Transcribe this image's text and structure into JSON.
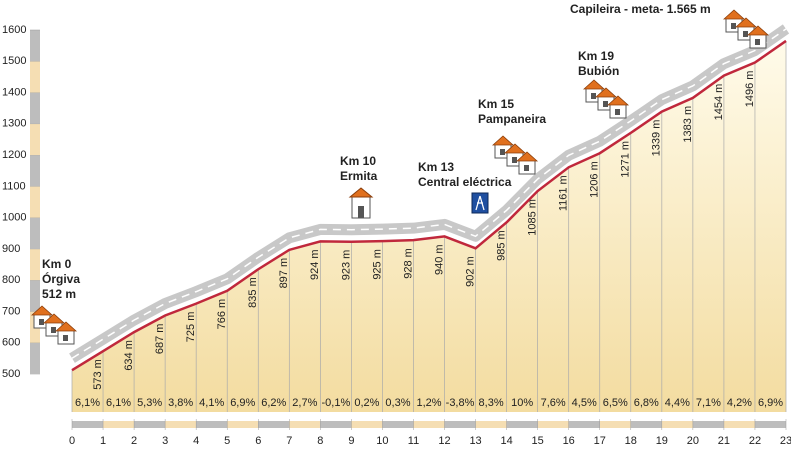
{
  "chart_data": {
    "type": "elevation-profile",
    "x": [
      0,
      1,
      2,
      3,
      4,
      5,
      6,
      7,
      8,
      9,
      10,
      11,
      12,
      13,
      14,
      15,
      16,
      17,
      18,
      19,
      20,
      21,
      22,
      23
    ],
    "xlim": [
      0,
      23
    ],
    "xticks": [
      0,
      1,
      2,
      3,
      4,
      5,
      6,
      7,
      8,
      9,
      10,
      11,
      12,
      13,
      14,
      15,
      16,
      17,
      18,
      19,
      20,
      21,
      22,
      23
    ],
    "ylim": [
      500,
      1600
    ],
    "yticks": [
      500,
      600,
      700,
      800,
      900,
      1000,
      1100,
      1200,
      1300,
      1400,
      1500,
      1600
    ],
    "series": [
      {
        "color": "#c0283c",
        "values": [
          512,
          573,
          634,
          687,
          725,
          766,
          835,
          897,
          924,
          923,
          925,
          928,
          940,
          902,
          985,
          1085,
          1161,
          1206,
          1271,
          1339,
          1383,
          1454,
          1496,
          1565
        ],
        "value_labels": [
          "512 m",
          "573 m",
          "634 m",
          "687 m",
          "725 m",
          "766 m",
          "835 m",
          "897 m",
          "924 m",
          "923 m",
          "925 m",
          "928 m",
          "940 m",
          "902 m",
          "985 m",
          "1085 m",
          "1161 m",
          "1206 m",
          "1271 m",
          "1339 m",
          "1383 m",
          "1454 m",
          "1496 m",
          null
        ]
      }
    ],
    "grades": {
      "values": [
        6.1,
        6.1,
        5.3,
        3.8,
        4.1,
        6.9,
        6.2,
        2.7,
        -0.1,
        0.2,
        0.3,
        1.2,
        -3.8,
        8.3,
        10,
        7.6,
        4.5,
        6.5,
        6.8,
        4.4,
        7.1,
        4.2,
        6.9
      ],
      "value_labels": [
        "6,1%",
        "6,1%",
        "5,3%",
        "3,8%",
        "4,1%",
        "6,9%",
        "6,2%",
        "2,7%",
        "-0,1%",
        "0,2%",
        "0,3%",
        "1,2%",
        "-3,8%",
        "8,3%",
        "10%",
        "7,6%",
        "4,5%",
        "6,5%",
        "6,8%",
        "4,4%",
        "7,1%",
        "4,2%",
        "6,9%"
      ]
    },
    "annotations": [
      {
        "x": 0,
        "lines": [
          "Km 0",
          "Órgiva"
        ]
      },
      {
        "x": 10,
        "lines": [
          "Km 10",
          "Ermita"
        ]
      },
      {
        "x": 13,
        "lines": [
          "Km 13",
          "Central eléctrica"
        ]
      },
      {
        "x": 15,
        "lines": [
          "Km 15",
          "Pampaneira"
        ]
      },
      {
        "x": 19,
        "lines": [
          "Km 19",
          "Bubión"
        ]
      },
      {
        "x": 23,
        "lines": [
          "Capileira - meta- 1.565 m"
        ]
      }
    ]
  }
}
